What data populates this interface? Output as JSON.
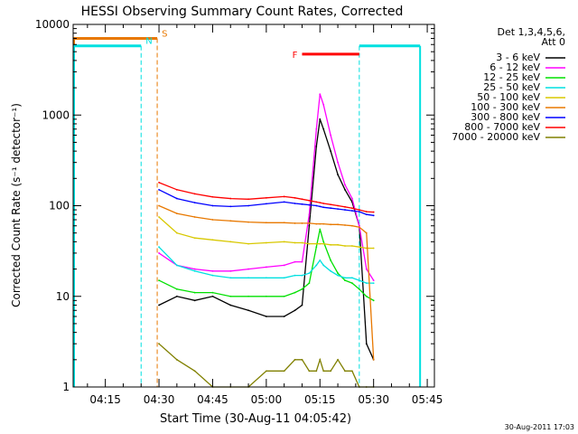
{
  "chart_data": {
    "type": "line",
    "title": "HESSI Observing Summary Count Rates, Corrected",
    "xlabel": "Start Time (30-Aug-11 04:05:42)",
    "ylabel": "Corrected Count Rate (s⁻¹ detector⁻¹)",
    "yscale": "log",
    "ylim": [
      1,
      10000
    ],
    "xlim": [
      "04:06",
      "05:47"
    ],
    "x_ticks": [
      "04:15",
      "04:30",
      "04:45",
      "05:00",
      "05:15",
      "05:30",
      "05:45"
    ],
    "y_ticks": [
      "1",
      "10",
      "100",
      "1000",
      "10000"
    ],
    "legend_header": [
      "Det 1,3,4,5,6,",
      "Att 0"
    ],
    "legend_position": "right",
    "footer_timestamp": "30-Aug-2011 17:03",
    "annotations": [
      {
        "label": "S",
        "type": "SAA",
        "color": "#e87800",
        "start": "04:06",
        "end": "04:29.5",
        "level": 7000
      },
      {
        "label": "N",
        "type": "Night",
        "color": "#00e0e0",
        "start": "04:06",
        "end": "04:25",
        "level": 5800
      },
      {
        "label": "N",
        "type": "Night",
        "color": "#00e0e0",
        "start": "05:26",
        "end": "05:43",
        "level": 5800
      },
      {
        "label": "F",
        "type": "Flare",
        "color": "#ff0000",
        "start": "05:10",
        "end": "05:26",
        "level": 4700
      }
    ],
    "series": [
      {
        "name": "3 - 6 keV",
        "color": "#000000",
        "x": [
          "04:30",
          "04:35",
          "04:40",
          "04:45",
          "04:50",
          "04:55",
          "05:00",
          "05:05",
          "05:08",
          "05:10",
          "05:12",
          "05:14",
          "05:15",
          "05:16",
          "05:18",
          "05:20",
          "05:22",
          "05:24",
          "05:26",
          "05:28",
          "05:30"
        ],
        "values": [
          8,
          10,
          9,
          10,
          8,
          7,
          6,
          6,
          7,
          8,
          60,
          450,
          900,
          700,
          400,
          220,
          150,
          110,
          60,
          3,
          2
        ]
      },
      {
        "name": "6 - 12 keV",
        "color": "#ff00ff",
        "x": [
          "04:30",
          "04:35",
          "04:40",
          "04:45",
          "04:50",
          "04:55",
          "05:00",
          "05:05",
          "05:08",
          "05:10",
          "05:12",
          "05:14",
          "05:15",
          "05:16",
          "05:18",
          "05:20",
          "05:22",
          "05:24",
          "05:26",
          "05:28",
          "05:30"
        ],
        "values": [
          30,
          22,
          20,
          19,
          19,
          20,
          21,
          22,
          24,
          24,
          80,
          700,
          1700,
          1300,
          600,
          300,
          170,
          120,
          60,
          20,
          15
        ]
      },
      {
        "name": "12 - 25 keV",
        "color": "#00e000",
        "x": [
          "04:30",
          "04:35",
          "04:40",
          "04:45",
          "04:50",
          "04:55",
          "05:00",
          "05:05",
          "05:08",
          "05:10",
          "05:12",
          "05:14",
          "05:15",
          "05:16",
          "05:18",
          "05:20",
          "05:22",
          "05:24",
          "05:26",
          "05:28",
          "05:30"
        ],
        "values": [
          15,
          12,
          11,
          11,
          10,
          10,
          10,
          10,
          11,
          12,
          14,
          35,
          55,
          40,
          25,
          18,
          15,
          14,
          12,
          10,
          9
        ]
      },
      {
        "name": "25 - 50 keV",
        "color": "#00e0e0",
        "x": [
          "04:30",
          "04:35",
          "04:40",
          "04:45",
          "04:50",
          "04:55",
          "05:00",
          "05:05",
          "05:08",
          "05:10",
          "05:12",
          "05:14",
          "05:15",
          "05:16",
          "05:18",
          "05:20",
          "05:22",
          "05:24",
          "05:26",
          "05:28",
          "05:30"
        ],
        "values": [
          35,
          22,
          19,
          17,
          16,
          16,
          16,
          16,
          17,
          17,
          18,
          22,
          25,
          22,
          19,
          17,
          16,
          16,
          15,
          14,
          14
        ]
      },
      {
        "name": "50 - 100 keV",
        "color": "#d8c800",
        "x": [
          "04:30",
          "04:35",
          "04:40",
          "04:45",
          "04:50",
          "04:55",
          "05:00",
          "05:05",
          "05:08",
          "05:10",
          "05:12",
          "05:14",
          "05:15",
          "05:16",
          "05:18",
          "05:20",
          "05:22",
          "05:24",
          "05:26",
          "05:28",
          "05:30"
        ],
        "values": [
          75,
          50,
          44,
          42,
          40,
          38,
          39,
          40,
          39,
          39,
          38,
          38,
          38,
          38,
          37,
          37,
          36,
          36,
          35,
          34,
          34
        ]
      },
      {
        "name": "100 - 300 keV",
        "color": "#e87800",
        "x": [
          "04:30",
          "04:35",
          "04:40",
          "04:45",
          "04:50",
          "04:55",
          "05:00",
          "05:05",
          "05:08",
          "05:10",
          "05:12",
          "05:14",
          "05:15",
          "05:16",
          "05:18",
          "05:20",
          "05:22",
          "05:24",
          "05:26",
          "05:28",
          "05:30"
        ],
        "values": [
          100,
          82,
          75,
          70,
          68,
          66,
          65,
          65,
          64,
          64,
          64,
          63,
          63,
          63,
          62,
          62,
          61,
          60,
          58,
          50,
          2
        ]
      },
      {
        "name": "300 - 800 keV",
        "color": "#0000ff",
        "x": [
          "04:30",
          "04:35",
          "04:40",
          "04:45",
          "04:50",
          "04:55",
          "05:00",
          "05:05",
          "05:08",
          "05:10",
          "05:12",
          "05:14",
          "05:15",
          "05:16",
          "05:18",
          "05:20",
          "05:22",
          "05:24",
          "05:26",
          "05:28",
          "05:30"
        ],
        "values": [
          150,
          120,
          108,
          100,
          98,
          100,
          105,
          110,
          106,
          104,
          102,
          100,
          98,
          96,
          94,
          92,
          90,
          88,
          86,
          80,
          78
        ]
      },
      {
        "name": "800 - 7000 keV",
        "color": "#ff0000",
        "x": [
          "04:30",
          "04:35",
          "04:40",
          "04:45",
          "04:50",
          "04:55",
          "05:00",
          "05:05",
          "05:08",
          "05:10",
          "05:12",
          "05:14",
          "05:15",
          "05:16",
          "05:18",
          "05:20",
          "05:22",
          "05:24",
          "05:26",
          "05:28",
          "05:30"
        ],
        "values": [
          180,
          150,
          135,
          125,
          120,
          118,
          122,
          126,
          122,
          118,
          114,
          110,
          108,
          106,
          103,
          100,
          97,
          94,
          90,
          86,
          85
        ]
      },
      {
        "name": "7000 - 20000 keV",
        "color": "#808000",
        "x": [
          "04:30",
          "04:35",
          "04:40",
          "04:45",
          "04:50",
          "04:55",
          "05:00",
          "05:05",
          "05:08",
          "05:10",
          "05:12",
          "05:14",
          "05:15",
          "05:16",
          "05:18",
          "05:20",
          "05:22",
          "05:24",
          "05:26",
          "05:28",
          "05:30"
        ],
        "values": [
          3,
          2,
          1.5,
          1,
          1,
          1,
          1.5,
          1.5,
          2,
          2,
          1.5,
          1.5,
          2,
          1.5,
          1.5,
          2,
          1.5,
          1.5,
          1,
          1,
          1
        ]
      }
    ]
  }
}
